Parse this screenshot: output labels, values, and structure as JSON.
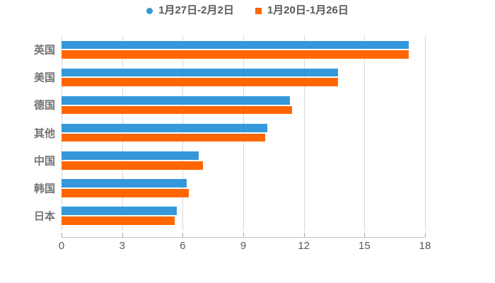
{
  "legend": {
    "items": [
      {
        "label": "1月27日-2月2日",
        "marker": "circle",
        "color": "#3498db"
      },
      {
        "label": "1月20日-1月26日",
        "marker": "square",
        "color": "#ff6600"
      }
    ]
  },
  "chart_data": {
    "type": "bar",
    "orientation": "horizontal",
    "title": "",
    "xlabel": "",
    "ylabel": "",
    "categories": [
      "英国",
      "美国",
      "德国",
      "其他",
      "中国",
      "韩国",
      "日本"
    ],
    "series": [
      {
        "name": "1月27日-2月2日",
        "color": "#3498db",
        "marker": "circle",
        "values": [
          17.2,
          13.7,
          11.3,
          10.2,
          6.8,
          6.2,
          5.7
        ]
      },
      {
        "name": "1月20日-1月26日",
        "color": "#ff6600",
        "marker": "square",
        "values": [
          17.2,
          13.7,
          11.4,
          10.1,
          7.0,
          6.3,
          5.6
        ]
      }
    ],
    "xlim": [
      0,
      18
    ],
    "xticks": [
      0,
      3,
      6,
      9,
      12,
      15,
      18
    ],
    "grid": "vertical-gridlines",
    "legend_position": "top-center"
  },
  "colors": {
    "background": "#ffffff",
    "series_blue": "#3498db",
    "series_orange": "#ff6600",
    "gridline": "#d9d9d9",
    "axis_line": "#c4c4c4",
    "tick_label": "#595959",
    "category_label": "#737373",
    "legend_text": "#595959"
  }
}
